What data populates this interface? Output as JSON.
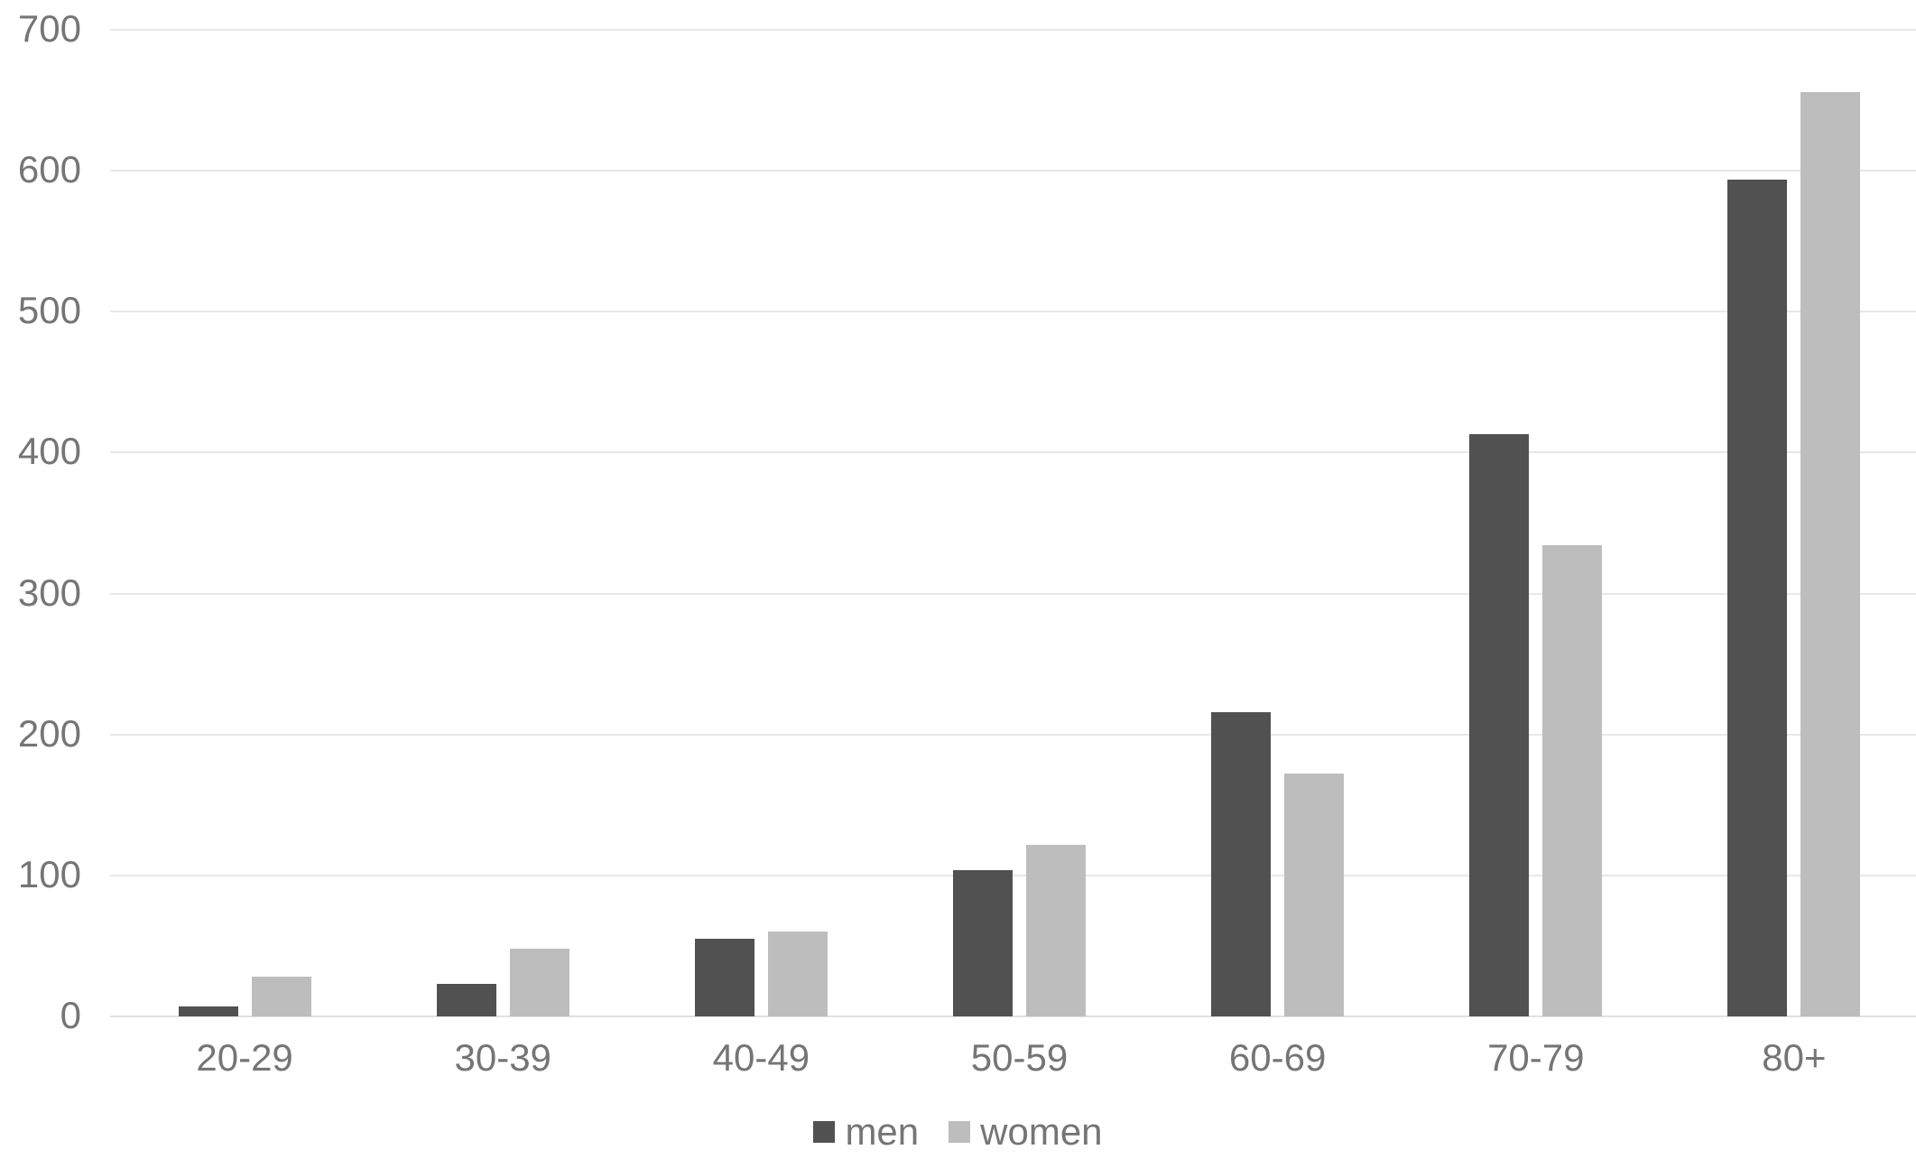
{
  "chart_data": {
    "type": "bar",
    "title": "",
    "xlabel": "",
    "ylabel": "",
    "categories": [
      "20-29",
      "30-39",
      "40-49",
      "50-59",
      "60-69",
      "70-79",
      "80+"
    ],
    "series": [
      {
        "name": "men",
        "color": "#515151",
        "values": [
          7,
          23,
          55,
          104,
          216,
          413,
          594
        ]
      },
      {
        "name": "women",
        "color": "#bdbdbd",
        "values": [
          28,
          48,
          60,
          122,
          172,
          334,
          656
        ]
      }
    ],
    "ylim": [
      0,
      700
    ],
    "yticks": [
      0,
      100,
      200,
      300,
      400,
      500,
      600,
      700
    ],
    "grid": true,
    "legend_position": "bottom",
    "colors": {
      "gridline": "#e8e8e8",
      "baseline": "#e0e0e0",
      "axis_text": "#757575",
      "background": "#ffffff"
    }
  }
}
